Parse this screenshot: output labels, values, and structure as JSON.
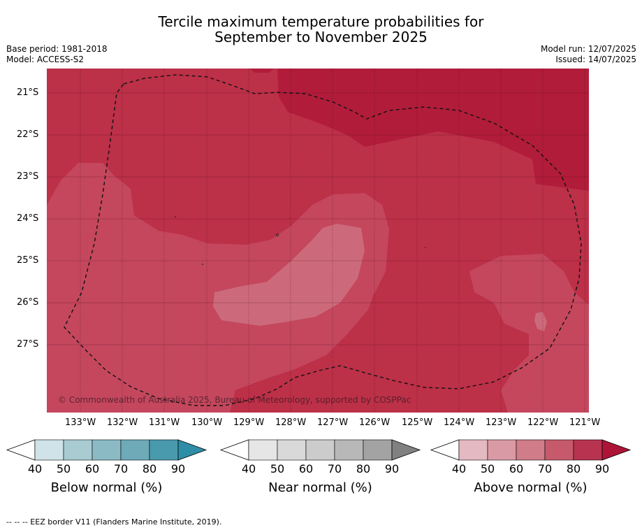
{
  "header": {
    "title_line1": "Tercile maximum temperature probabilities for",
    "title_line2": "September to November 2025",
    "base_period": "Base period: 1981-2018",
    "model": "Model: ACCESS-S2",
    "model_run": "Model run: 12/07/2025",
    "issued": "Issued: 14/07/2025"
  },
  "map": {
    "lat_labels": [
      "21°S",
      "22°S",
      "23°S",
      "24°S",
      "25°S",
      "26°S",
      "27°S"
    ],
    "lon_labels": [
      "133°W",
      "132°W",
      "131°W",
      "130°W",
      "129°W",
      "128°W",
      "127°W",
      "126°W",
      "125°W",
      "124°W",
      "123°W",
      "122°W",
      "121°W"
    ],
    "copyright": "© Commonwealth of Australia 2025, Bureau of Meteorology, supported by COSPPac",
    "colors": {
      "above_80_90": "#b81d3c",
      "above_70_80": "#c4475e",
      "above_60_70": "#cc6578",
      "base": "#bc3048"
    }
  },
  "legends": [
    {
      "label": "Below normal (%)",
      "ticks": [
        "40",
        "50",
        "60",
        "70",
        "80",
        "90"
      ],
      "colors": [
        "#cfe3e8",
        "#a9cbd2",
        "#8bbac5",
        "#6eaab8",
        "#4a9aae",
        "#2e8ea7"
      ]
    },
    {
      "label": "Near normal (%)",
      "ticks": [
        "40",
        "50",
        "60",
        "70",
        "80",
        "90"
      ],
      "colors": [
        "#e6e6e6",
        "#d9d9d9",
        "#cccccc",
        "#b8b8b8",
        "#a3a3a3",
        "#808080"
      ]
    },
    {
      "label": "Above normal (%)",
      "ticks": [
        "40",
        "50",
        "60",
        "70",
        "80",
        "90"
      ],
      "colors": [
        "#e5b9c1",
        "#da9aa5",
        "#d07c89",
        "#c65a6c",
        "#b83350",
        "#ad1437"
      ]
    }
  ],
  "footer": "--  --  -- EEZ border V11 (Flanders Marine Institute, 2019)."
}
